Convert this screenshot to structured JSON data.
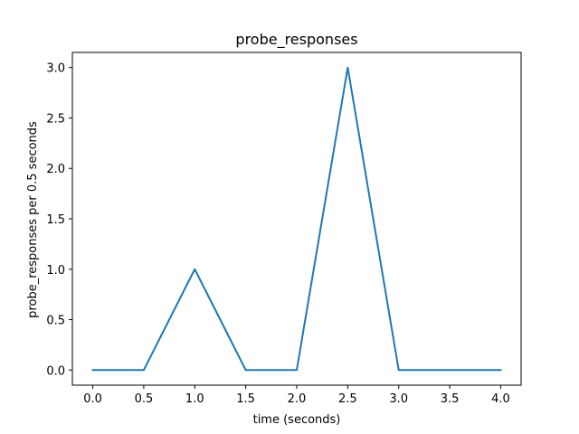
{
  "chart_data": {
    "type": "line",
    "title": "probe_responses",
    "xlabel": "time (seconds)",
    "ylabel": "probe_responses per 0.5 seconds",
    "x": [
      0.0,
      0.5,
      1.0,
      1.5,
      2.0,
      2.5,
      3.0,
      3.5,
      4.0
    ],
    "series": [
      {
        "values": [
          0,
          0,
          1,
          0,
          0,
          3,
          0,
          0,
          0
        ],
        "color": "#1f77b4"
      }
    ],
    "xlim": [
      -0.2,
      4.2
    ],
    "ylim": [
      -0.15,
      3.15
    ],
    "xticks": [
      0.0,
      0.5,
      1.0,
      1.5,
      2.0,
      2.5,
      3.0,
      3.5,
      4.0
    ],
    "xtick_labels": [
      "0.0",
      "0.5",
      "1.0",
      "1.5",
      "2.0",
      "2.5",
      "3.0",
      "3.5",
      "4.0"
    ],
    "yticks": [
      0.0,
      0.5,
      1.0,
      1.5,
      2.0,
      2.5,
      3.0
    ],
    "ytick_labels": [
      "0.0",
      "0.5",
      "1.0",
      "1.5",
      "2.0",
      "2.5",
      "3.0"
    ],
    "grid": false,
    "legend": "none"
  }
}
